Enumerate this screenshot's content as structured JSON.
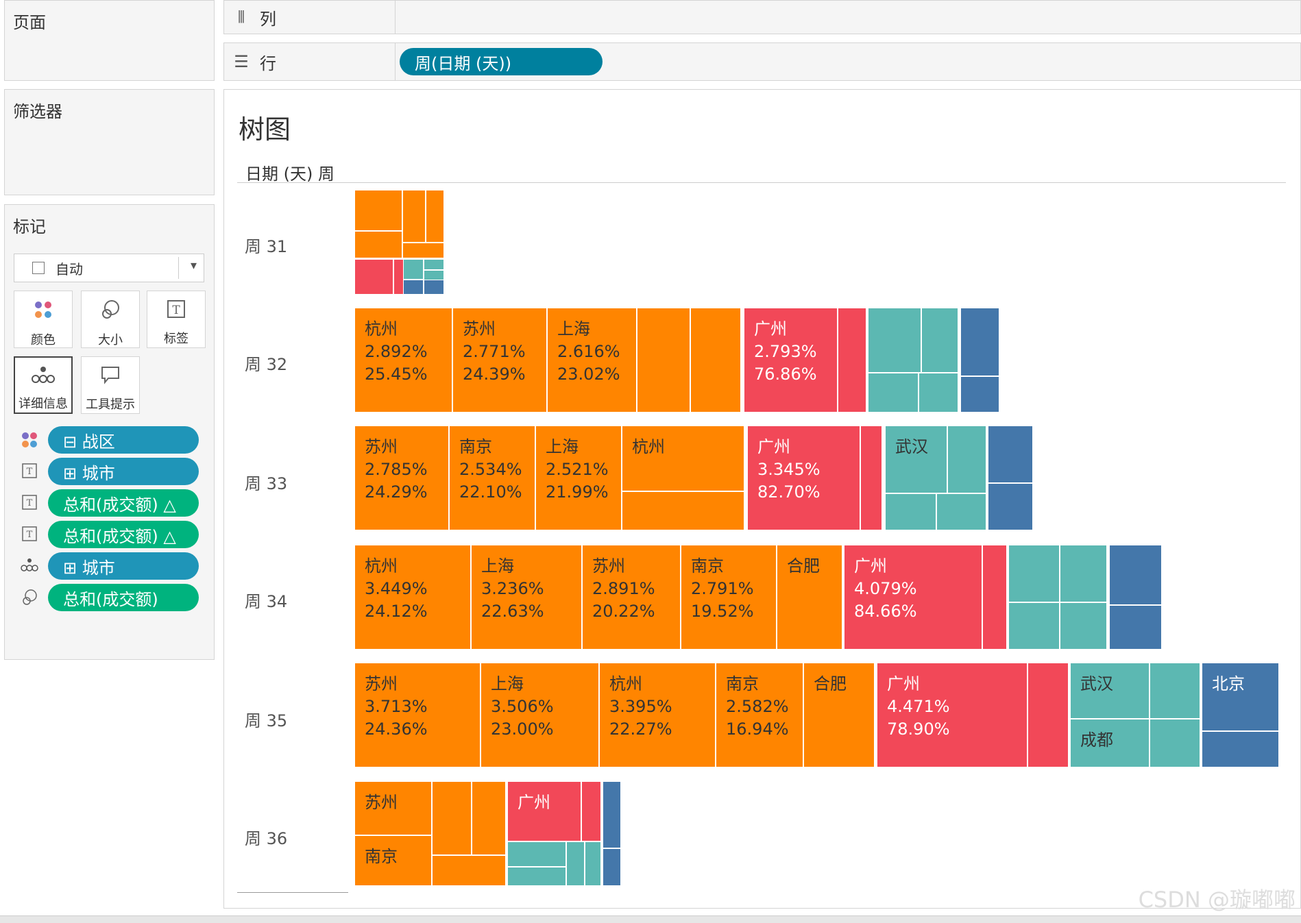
{
  "shelves": {
    "pages": "页面",
    "filters": "筛选器",
    "columns": "列",
    "rows": "行",
    "row_pill": "周(日期 (天))"
  },
  "marks": {
    "title": "标记",
    "mark_type": "自动",
    "cards": [
      "颜色",
      "大小",
      "标签",
      "详细信息",
      "工具提示"
    ],
    "fields": [
      {
        "icon": "color-icon",
        "label": "⊟ 战区",
        "color": "#1f95b8"
      },
      {
        "icon": "label-icon",
        "label": "⊞ 城市",
        "color": "#1f95b8"
      },
      {
        "icon": "label-icon",
        "label": "总和(成交额) △",
        "color": "#00b37e"
      },
      {
        "icon": "label-icon",
        "label": "总和(成交额) △",
        "color": "#00b37e"
      },
      {
        "icon": "detail-icon",
        "label": "⊞ 城市",
        "color": "#1f95b8"
      },
      {
        "icon": "size-icon",
        "label": "总和(成交额)",
        "color": "#00b37e"
      }
    ]
  },
  "view": {
    "title": "树图",
    "header": "日期 (天) 周"
  },
  "colors": {
    "orange": "#ff8500",
    "red": "#f24858",
    "teal": "#5cb8b2",
    "blue": "#4477aa",
    "pill_blue": "#1f95b8",
    "pill_green": "#00b37e"
  },
  "weeks": [
    {
      "label": "周 31",
      "tiles": []
    },
    {
      "label": "周 32",
      "tiles": [
        {
          "city": "杭州",
          "v1": "2.892%",
          "v2": "25.45%"
        },
        {
          "city": "苏州",
          "v1": "2.771%",
          "v2": "24.39%"
        },
        {
          "city": "上海",
          "v1": "2.616%",
          "v2": "23.02%"
        },
        {
          "city": "广州",
          "v1": "2.793%",
          "v2": "76.86%"
        }
      ]
    },
    {
      "label": "周 33",
      "tiles": [
        {
          "city": "苏州",
          "v1": "2.785%",
          "v2": "24.29%"
        },
        {
          "city": "南京",
          "v1": "2.534%",
          "v2": "22.10%"
        },
        {
          "city": "上海",
          "v1": "2.521%",
          "v2": "21.99%"
        },
        {
          "city": "杭州",
          "v1": "",
          "v2": ""
        },
        {
          "city": "广州",
          "v1": "3.345%",
          "v2": "82.70%"
        },
        {
          "city": "武汉",
          "v1": "",
          "v2": ""
        }
      ]
    },
    {
      "label": "周 34",
      "tiles": [
        {
          "city": "杭州",
          "v1": "3.449%",
          "v2": "24.12%"
        },
        {
          "city": "上海",
          "v1": "3.236%",
          "v2": "22.63%"
        },
        {
          "city": "苏州",
          "v1": "2.891%",
          "v2": "20.22%"
        },
        {
          "city": "南京",
          "v1": "2.791%",
          "v2": "19.52%"
        },
        {
          "city": "合肥",
          "v1": "",
          "v2": ""
        },
        {
          "city": "广州",
          "v1": "4.079%",
          "v2": "84.66%"
        }
      ]
    },
    {
      "label": "周 35",
      "tiles": [
        {
          "city": "苏州",
          "v1": "3.713%",
          "v2": "24.36%"
        },
        {
          "city": "上海",
          "v1": "3.506%",
          "v2": "23.00%"
        },
        {
          "city": "杭州",
          "v1": "3.395%",
          "v2": "22.27%"
        },
        {
          "city": "南京",
          "v1": "2.582%",
          "v2": "16.94%"
        },
        {
          "city": "合肥",
          "v1": "",
          "v2": ""
        },
        {
          "city": "广州",
          "v1": "4.471%",
          "v2": "78.90%"
        },
        {
          "city": "武汉",
          "v1": "",
          "v2": ""
        },
        {
          "city": "成都",
          "v1": "",
          "v2": ""
        },
        {
          "city": "北京",
          "v1": "",
          "v2": ""
        }
      ]
    },
    {
      "label": "周 36",
      "tiles": [
        {
          "city": "苏州",
          "v1": "",
          "v2": ""
        },
        {
          "city": "南京",
          "v1": "",
          "v2": ""
        },
        {
          "city": "广州",
          "v1": "",
          "v2": ""
        }
      ]
    }
  ],
  "watermark": "CSDN @璇嘟嘟"
}
